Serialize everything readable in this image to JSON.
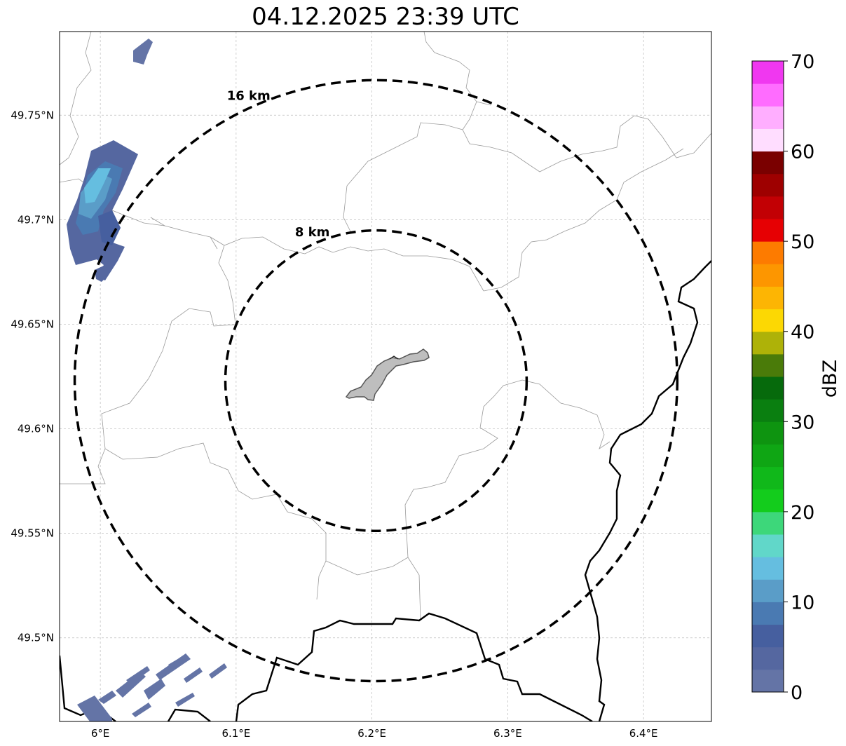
{
  "title": "04.12.2025 23:39 UTC",
  "map": {
    "lon_range": [
      5.97,
      6.45
    ],
    "lat_range": [
      49.46,
      49.79
    ],
    "lon_ticks": [
      {
        "value": 6.0,
        "label": "6°E"
      },
      {
        "value": 6.1,
        "label": "6.1°E"
      },
      {
        "value": 6.2,
        "label": "6.2°E"
      },
      {
        "value": 6.3,
        "label": "6.3°E"
      },
      {
        "value": 6.4,
        "label": "6.4°E"
      }
    ],
    "lat_ticks": [
      {
        "value": 49.75,
        "label": "49.75°N"
      },
      {
        "value": 49.7,
        "label": "49.7°N"
      },
      {
        "value": 49.65,
        "label": "49.65°N"
      },
      {
        "value": 49.6,
        "label": "49.6°N"
      },
      {
        "value": 49.55,
        "label": "49.55°N"
      },
      {
        "value": 49.5,
        "label": "49.5°N"
      }
    ],
    "radar_center": {
      "lon": 6.203,
      "lat": 49.623
    },
    "rings": [
      {
        "radius_km": 8,
        "label": "8 km"
      },
      {
        "radius_km": 16,
        "label": "16 km"
      }
    ],
    "colors": {
      "border": "#000000",
      "commune_border": "#9a9a9a",
      "city_fill": "#bebebe",
      "grid": "#bbbbbb"
    }
  },
  "colorbar": {
    "label": "dBZ",
    "min": 0,
    "max": 70,
    "step": 2.5,
    "ticks": [
      "0",
      "10",
      "20",
      "30",
      "40",
      "50",
      "60",
      "70"
    ],
    "colors": [
      "#6474a6",
      "#5567a0",
      "#465f9f",
      "#4a7ab2",
      "#5a9dc8",
      "#65bee0",
      "#61d7c9",
      "#3dd77a",
      "#13cc1c",
      "#10b81a",
      "#0fa614",
      "#0e9410",
      "#0a7f10",
      "#066a0c",
      "#4a7b09",
      "#aeb208",
      "#fcd803",
      "#fdb503",
      "#fd9600",
      "#fd7b00",
      "#e60003",
      "#c20004",
      "#9e0000",
      "#7a0000",
      "#ffddff",
      "#ffaeff",
      "#ff6cff",
      "#f037f0"
    ]
  }
}
